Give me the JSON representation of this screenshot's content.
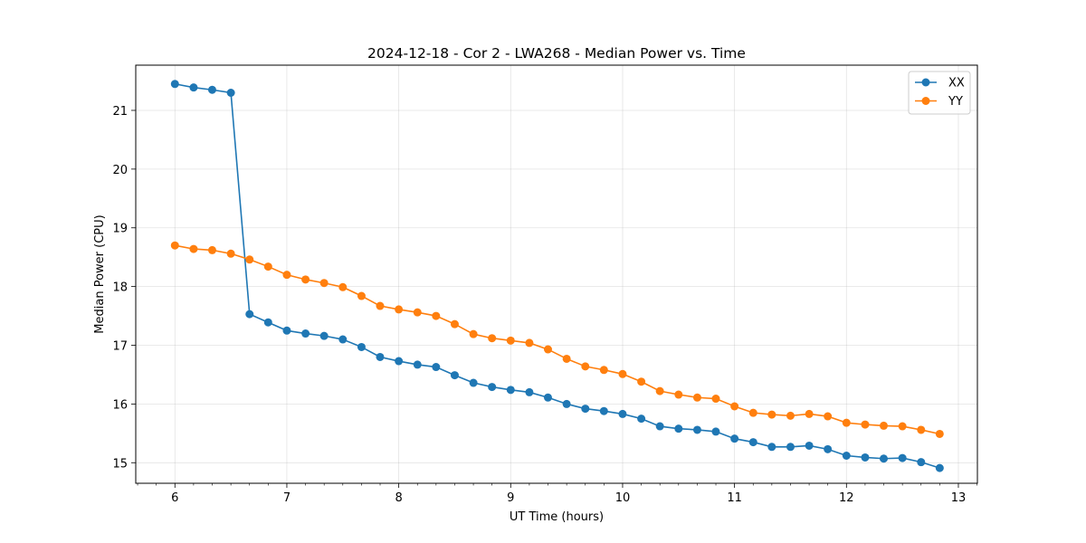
{
  "chart_data": {
    "type": "line",
    "title": "2024-12-18 - Cor 2 - LWA268 - Median Power vs. Time",
    "xlabel": "UT Time (hours)",
    "ylabel": "Median Power (CPU)",
    "xlim": [
      5.65,
      13.17
    ],
    "ylim": [
      14.65,
      21.77
    ],
    "xticks": [
      "6",
      "7",
      "8",
      "9",
      "10",
      "11",
      "12",
      "13"
    ],
    "yticks": [
      "15",
      "16",
      "17",
      "18",
      "19",
      "20",
      "21"
    ],
    "grid": true,
    "legend_position": "top-right",
    "x": [
      6.0,
      6.167,
      6.333,
      6.5,
      6.667,
      6.833,
      7.0,
      7.167,
      7.333,
      7.5,
      7.667,
      7.833,
      8.0,
      8.167,
      8.333,
      8.5,
      8.667,
      8.833,
      9.0,
      9.167,
      9.333,
      9.5,
      9.667,
      9.833,
      10.0,
      10.167,
      10.333,
      10.5,
      10.667,
      10.833,
      11.0,
      11.167,
      11.333,
      11.5,
      11.667,
      11.833,
      12.0,
      12.167,
      12.333,
      12.5,
      12.667,
      12.833
    ],
    "series": [
      {
        "name": "XX",
        "color": "#1f77b4",
        "values": [
          21.45,
          21.39,
          21.35,
          21.3,
          17.53,
          17.39,
          17.25,
          17.2,
          17.16,
          17.1,
          16.97,
          16.8,
          16.73,
          16.67,
          16.63,
          16.49,
          16.36,
          16.29,
          16.24,
          16.2,
          16.11,
          16.0,
          15.92,
          15.88,
          15.83,
          15.75,
          15.62,
          15.58,
          15.56,
          15.53,
          15.41,
          15.35,
          15.27,
          15.27,
          15.29,
          15.23,
          15.12,
          15.09,
          15.07,
          15.08,
          15.01,
          14.91
        ]
      },
      {
        "name": "YY",
        "color": "#ff7f0e",
        "values": [
          18.7,
          18.64,
          18.62,
          18.56,
          18.46,
          18.34,
          18.2,
          18.12,
          18.06,
          17.99,
          17.84,
          17.67,
          17.61,
          17.56,
          17.5,
          17.36,
          17.19,
          17.12,
          17.08,
          17.04,
          16.93,
          16.77,
          16.64,
          16.58,
          16.51,
          16.38,
          16.22,
          16.16,
          16.11,
          16.09,
          15.96,
          15.85,
          15.82,
          15.8,
          15.83,
          15.79,
          15.68,
          15.65,
          15.63,
          15.62,
          15.56,
          15.49
        ]
      }
    ]
  }
}
